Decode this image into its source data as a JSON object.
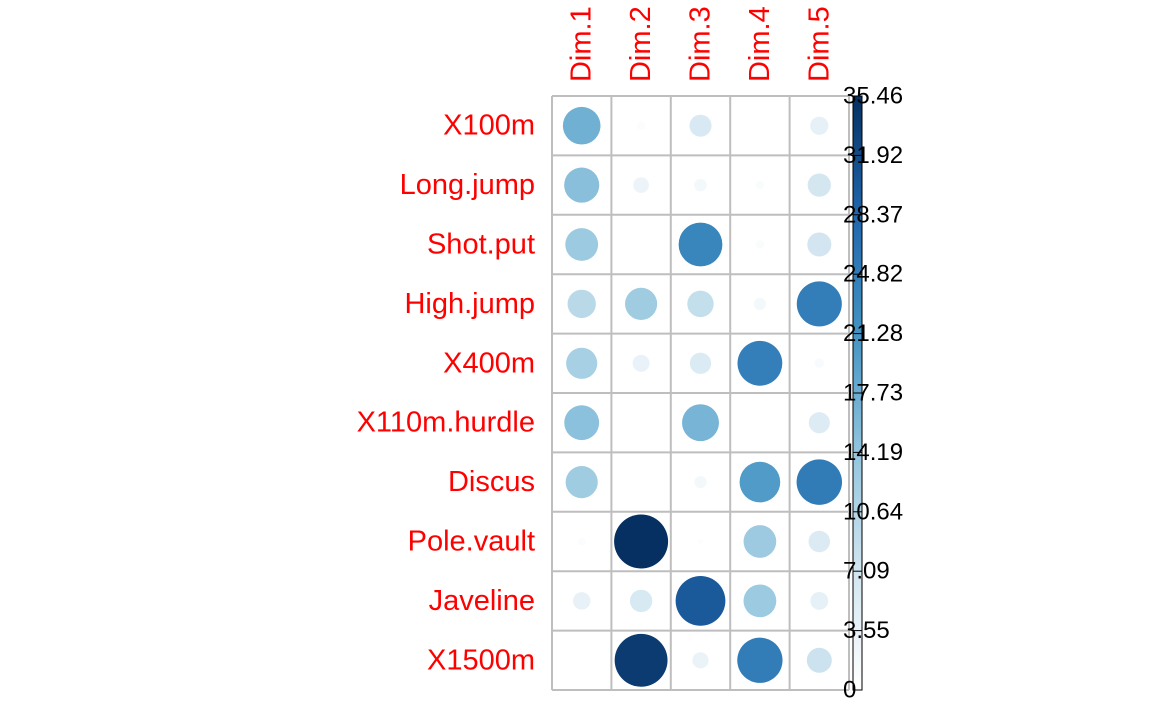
{
  "chart_data": {
    "type": "heatmap",
    "rows": [
      "X100m",
      "Long.jump",
      "Shot.put",
      "High.jump",
      "X400m",
      "X110m.hurdle",
      "Discus",
      "Pole.vault",
      "Javeline",
      "X1500m"
    ],
    "columns": [
      "Dim.1",
      "Dim.2",
      "Dim.3",
      "Dim.4",
      "Dim.5"
    ],
    "values": [
      [
        17.2,
        0.8,
        5.9,
        0.0,
        4.0
      ],
      [
        15.0,
        3.0,
        1.9,
        0.9,
        6.6
      ],
      [
        13.1,
        0.1,
        23.3,
        0.9,
        7.0
      ],
      [
        9.8,
        12.6,
        8.5,
        1.8,
        24.7
      ],
      [
        11.8,
        3.5,
        5.5,
        24.4,
        1.1
      ],
      [
        14.8,
        0.0,
        16.6,
        0.0,
        5.4
      ],
      [
        12.6,
        0.0,
        1.8,
        20.1,
        25.1
      ],
      [
        0.7,
        35.46,
        0.4,
        13.0,
        5.6
      ],
      [
        3.7,
        6.1,
        30.1,
        13.1,
        3.9
      ],
      [
        0.0,
        34.0,
        3.2,
        24.9,
        7.6
      ]
    ],
    "color_range": [
      0,
      35.46
    ],
    "legend_ticks": [
      "0",
      "3.55",
      "7.09",
      "10.64",
      "14.19",
      "17.73",
      "21.28",
      "24.82",
      "28.37",
      "31.92",
      "35.46"
    ],
    "legend_position": "right",
    "colors": {
      "low": "#ffffff",
      "mid_light": "#d1e5f0",
      "mid": "#92c5de",
      "mid_dark": "#4393c3",
      "dark": "#2166ac",
      "high": "#053061",
      "label": "#ff0000",
      "grid": "#bebebe"
    }
  }
}
